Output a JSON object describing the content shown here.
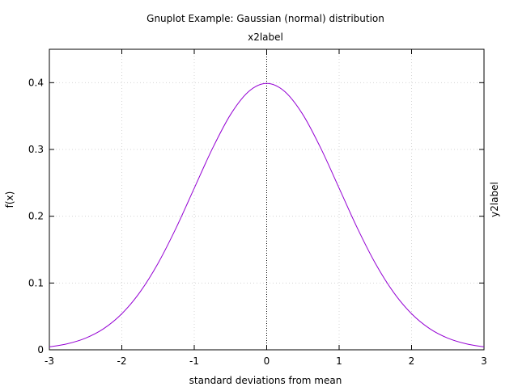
{
  "chart_data": {
    "type": "line",
    "title": "Gnuplot Example: Gaussian (normal) distribution",
    "xlabel": "standard deviations from mean",
    "ylabel": "f(x)",
    "x2label": "x2label",
    "y2label": "y2label",
    "xlim": [
      -3,
      3
    ],
    "ylim": [
      0,
      0.45
    ],
    "x_ticks": [
      -3,
      -2,
      -1,
      0,
      1,
      2,
      3
    ],
    "x_tick_labels": [
      "-3",
      "-2",
      "-1",
      "0",
      "1",
      "2",
      "3"
    ],
    "y_ticks": [
      0,
      0.1,
      0.2,
      0.3,
      0.4
    ],
    "y_tick_labels": [
      "0",
      "0.1",
      "0.2",
      "0.3",
      "0.4"
    ],
    "grid": true,
    "zero_axis": "dotted vertical line at x = 0",
    "series": [
      {
        "color": "#9400d3",
        "x": [
          -3.0,
          -2.75,
          -2.5,
          -2.25,
          -2.0,
          -1.75,
          -1.5,
          -1.25,
          -1.0,
          -0.75,
          -0.5,
          -0.25,
          0.0,
          0.25,
          0.5,
          0.75,
          1.0,
          1.25,
          1.5,
          1.75,
          2.0,
          2.25,
          2.5,
          2.75,
          3.0
        ],
        "y": [
          0.0044,
          0.0091,
          0.0175,
          0.0317,
          0.054,
          0.0863,
          0.1295,
          0.1826,
          0.242,
          0.3011,
          0.3521,
          0.3867,
          0.3989,
          0.3867,
          0.3521,
          0.3011,
          0.242,
          0.1826,
          0.1295,
          0.0863,
          0.054,
          0.0317,
          0.0175,
          0.0091,
          0.0044
        ]
      }
    ]
  }
}
